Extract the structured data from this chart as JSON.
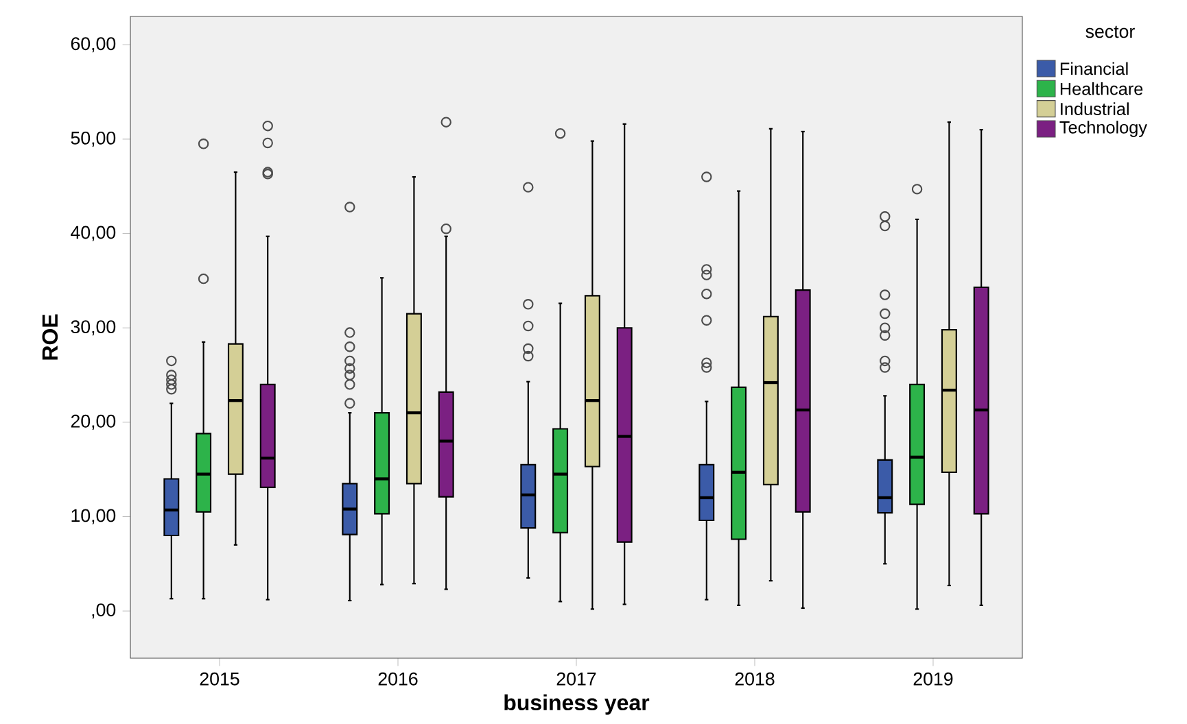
{
  "chart_data": {
    "type": "box",
    "xlabel": "business year",
    "ylabel": "ROE",
    "legend_title": "sector",
    "legend": "top right",
    "categories": [
      "2015",
      "2016",
      "2017",
      "2018",
      "2019"
    ],
    "ylim": [
      -5,
      63
    ],
    "yticks": [
      {
        "value": 0,
        "label": ",00"
      },
      {
        "value": 10,
        "label": "10,00"
      },
      {
        "value": 20,
        "label": "20,00"
      },
      {
        "value": 30,
        "label": "30,00"
      },
      {
        "value": 40,
        "label": "40,00"
      },
      {
        "value": 50,
        "label": "50,00"
      },
      {
        "value": 60,
        "label": "60,00"
      }
    ],
    "series": [
      {
        "name": "Financial",
        "color": "#3b5ba8",
        "boxes": [
          {
            "low": 1.3,
            "q1": 8,
            "median": 10.7,
            "q3": 14,
            "high": 22,
            "outliers": [
              23.5,
              24,
              24.5,
              25,
              26.5
            ]
          },
          {
            "low": 1.1,
            "q1": 8.1,
            "median": 10.8,
            "q3": 13.5,
            "high": 21,
            "outliers": [
              22,
              24,
              25,
              25.7,
              26.5,
              28,
              29.5,
              42.8
            ]
          },
          {
            "low": 3.5,
            "q1": 8.8,
            "median": 12.3,
            "q3": 15.5,
            "high": 24.3,
            "outliers": [
              27,
              27.8,
              30.2,
              32.5,
              44.9
            ]
          },
          {
            "low": 1.2,
            "q1": 9.6,
            "median": 12,
            "q3": 15.5,
            "high": 22.2,
            "outliers": [
              25.8,
              26.3,
              30.8,
              33.6,
              35.6,
              36.2,
              46
            ]
          },
          {
            "low": 5,
            "q1": 10.4,
            "median": 12,
            "q3": 16,
            "high": 22.8,
            "outliers": [
              25.8,
              26.5,
              29.2,
              30,
              31.5,
              33.5,
              40.8,
              41.8
            ]
          }
        ]
      },
      {
        "name": "Healthcare",
        "color": "#2db34a",
        "boxes": [
          {
            "low": 1.3,
            "q1": 10.5,
            "median": 14.5,
            "q3": 18.8,
            "high": 28.5,
            "outliers": [
              35.2,
              49.5
            ]
          },
          {
            "low": 2.8,
            "q1": 10.3,
            "median": 14,
            "q3": 21,
            "high": 35.3
          },
          {
            "low": 1,
            "q1": 8.3,
            "median": 14.5,
            "q3": 19.3,
            "high": 32.6,
            "outliers": [
              50.6
            ]
          },
          {
            "low": 0.6,
            "q1": 7.6,
            "median": 14.7,
            "q3": 23.7,
            "high": 44.5
          },
          {
            "low": 0.2,
            "q1": 11.3,
            "median": 16.3,
            "q3": 24,
            "high": 41.5,
            "outliers": [
              44.7
            ]
          }
        ]
      },
      {
        "name": "Industrial",
        "color": "#d4cf96",
        "boxes": [
          {
            "low": 7,
            "q1": 14.5,
            "median": 22.3,
            "q3": 28.3,
            "high": 46.5
          },
          {
            "low": 2.9,
            "q1": 13.5,
            "median": 21,
            "q3": 31.5,
            "high": 46
          },
          {
            "low": 0.2,
            "q1": 15.3,
            "median": 22.3,
            "q3": 33.4,
            "high": 49.8
          },
          {
            "low": 3.2,
            "q1": 13.4,
            "median": 24.2,
            "q3": 31.2,
            "high": 51.1
          },
          {
            "low": 2.7,
            "q1": 14.7,
            "median": 23.4,
            "q3": 29.8,
            "high": 51.8
          }
        ]
      },
      {
        "name": "Technology",
        "color": "#7b2082",
        "boxes": [
          {
            "low": 1.2,
            "q1": 13.1,
            "median": 16.2,
            "q3": 24,
            "high": 39.7,
            "outliers": [
              46.3,
              46.5,
              49.6,
              51.4
            ]
          },
          {
            "low": 2.3,
            "q1": 12.1,
            "median": 18,
            "q3": 23.2,
            "high": 39.7,
            "outliers": [
              40.5,
              51.8
            ]
          },
          {
            "low": 0.7,
            "q1": 7.3,
            "median": 18.5,
            "q3": 30,
            "high": 51.6
          },
          {
            "low": 0.3,
            "q1": 10.5,
            "median": 21.3,
            "q3": 34,
            "high": 50.8
          },
          {
            "low": 0.6,
            "q1": 10.3,
            "median": 21.3,
            "q3": 34.3,
            "high": 51
          }
        ]
      }
    ]
  }
}
